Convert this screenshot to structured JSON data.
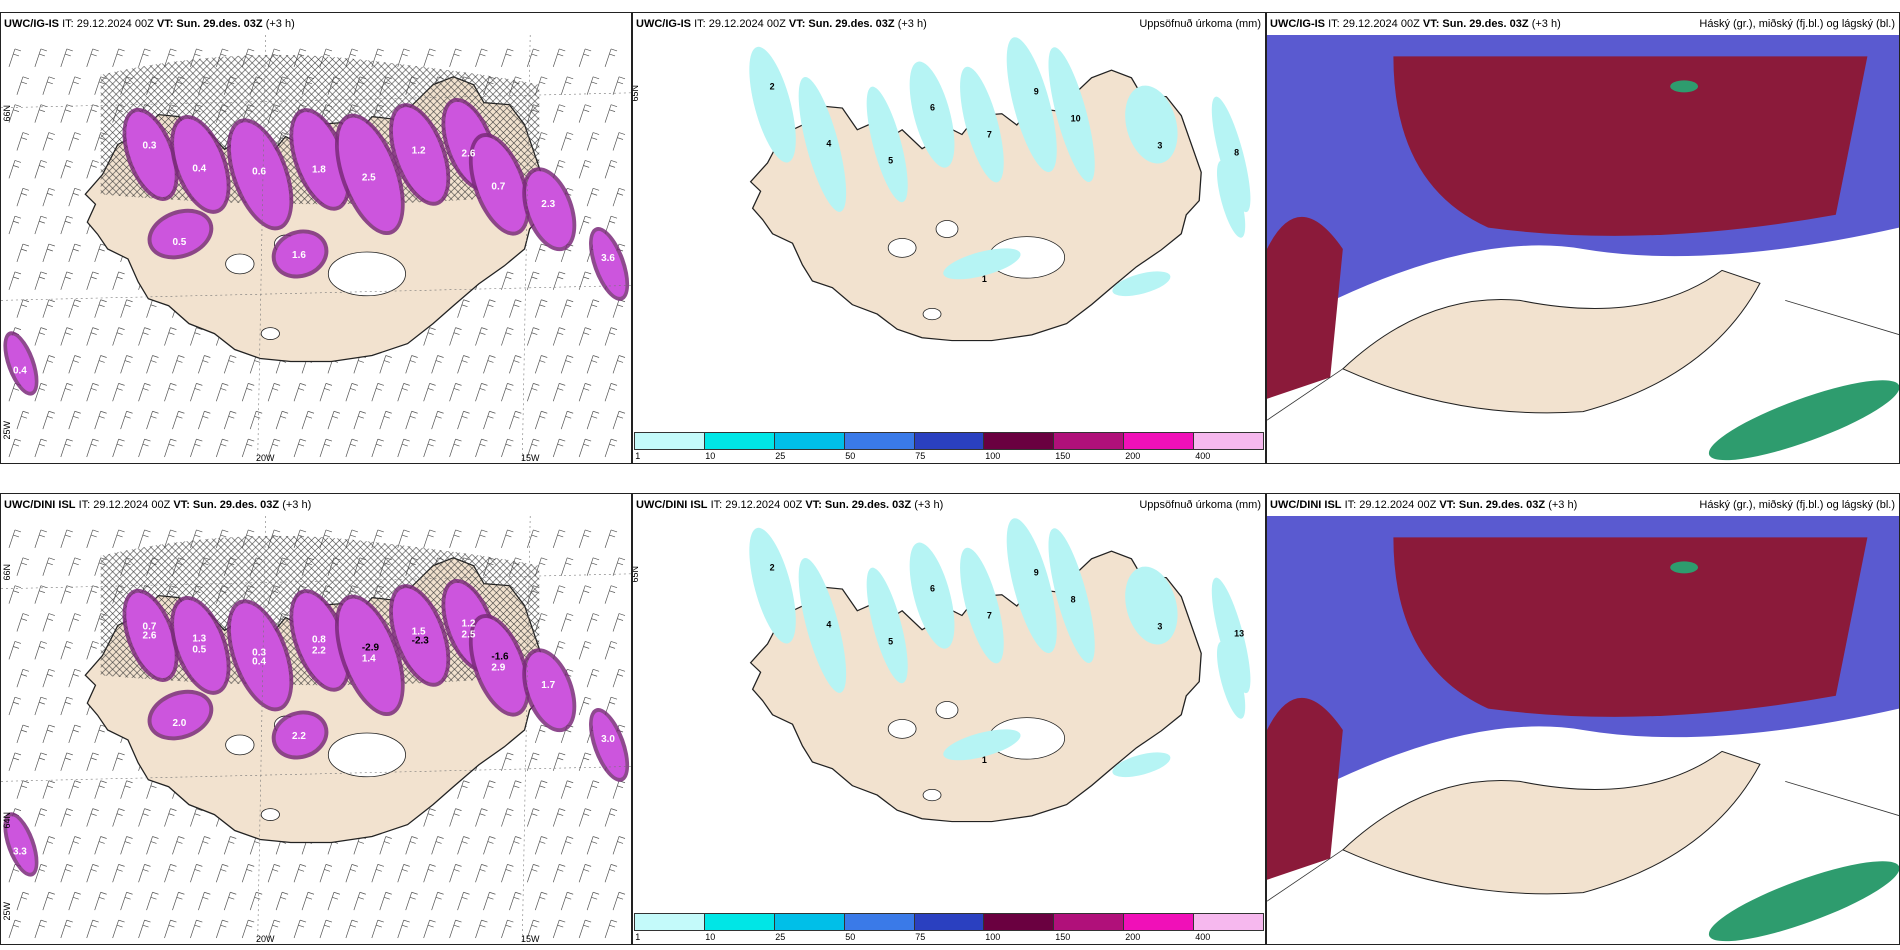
{
  "colors": {
    "land": "#f2e2cf",
    "precip_light": "#b6f4f4",
    "snow_magenta": "#cc55dd",
    "snow_dark": "#7a2a7a",
    "cloud_high": "#8b1a3a",
    "cloud_mid": "#5a5ad0",
    "cloud_low": "#2e9c6e"
  },
  "panels": [
    {
      "id": "top-left",
      "model": "UWC/IG-IS",
      "it_text": "IT: 29.12.2024 00Z",
      "vt_text": "VT: Sun. 29.des. 03Z",
      "lead": "(+3 h)",
      "title": "",
      "lon_labels": [
        "20W",
        "15W"
      ],
      "lat_labels": [
        "66N",
        "25W"
      ]
    },
    {
      "id": "top-middle",
      "model": "UWC/IG-IS",
      "it_text": "IT: 29.12.2024 00Z",
      "vt_text": "VT: Sun. 29.des. 03Z",
      "lead": "(+3 h)",
      "title": "Uppsöfnuð úrkoma (mm)",
      "lat_labels": [
        "65N"
      ]
    },
    {
      "id": "top-right",
      "model": "UWC/IG-IS",
      "it_text": "IT: 29.12.2024 00Z",
      "vt_text": "VT: Sun. 29.des. 03Z",
      "lead": "(+3 h)",
      "title": "Háský (gr.), miðský (fj.bl.) og lágský (bl.)"
    },
    {
      "id": "bottom-left",
      "model": "UWC/DINI ISL",
      "it_text": "IT: 29.12.2024 00Z",
      "vt_text": "VT: Sun. 29.des. 03Z",
      "lead": "(+3 h)",
      "title": "",
      "lon_labels": [
        "20W",
        "15W"
      ],
      "lat_labels": [
        "66N",
        "64N",
        "25W"
      ]
    },
    {
      "id": "bottom-middle",
      "model": "UWC/DINI ISL",
      "it_text": "IT: 29.12.2024 00Z",
      "vt_text": "VT: Sun. 29.des. 03Z",
      "lead": "(+3 h)",
      "title": "Uppsöfnuð úrkoma (mm)",
      "lat_labels": [
        "65N"
      ]
    },
    {
      "id": "bottom-right",
      "model": "UWC/DINI ISL",
      "it_text": "IT: 29.12.2024 00Z",
      "vt_text": "VT: Sun. 29.des. 03Z",
      "lead": "(+3 h)",
      "title": "Háský (gr.), miðský (fj.bl.) og lágský (bl.)"
    }
  ],
  "precip_legend": {
    "ticks": [
      "1",
      "10",
      "25",
      "50",
      "75",
      "100",
      "150",
      "200",
      "400"
    ],
    "colors": [
      "#c4fafa",
      "#00e6e6",
      "#00bfe8",
      "#3a7ae8",
      "#2a40c0",
      "#6a0040",
      "#b0107a",
      "#f010b8",
      "#f6b8ee"
    ]
  },
  "snow_labels_top": [
    "0.3",
    "0.4",
    "0.6",
    "1.8",
    "2.5",
    "1.2",
    "2.6",
    "0.7",
    "2.3",
    "0.5",
    "1.6",
    "3.6",
    "0.4"
  ],
  "snow_labels_bottom": [
    "0.7",
    "0.5",
    "0.3",
    "2.2",
    "1.4",
    "1.5",
    "2.5",
    "2.9",
    "1.7",
    "2.0",
    "2.2",
    "3.0",
    "3.3",
    "2.6",
    "1.3",
    "0.4",
    "0.8",
    "-2.9",
    "-2.3",
    "1.2",
    "-1.6"
  ],
  "precip_labels_top": [
    "2",
    "4",
    "5",
    "6",
    "7",
    "9",
    "10",
    "3",
    "8",
    "1"
  ],
  "precip_labels_bottom": [
    "2",
    "4",
    "5",
    "6",
    "7",
    "9",
    "8",
    "3",
    "13",
    "1"
  ]
}
